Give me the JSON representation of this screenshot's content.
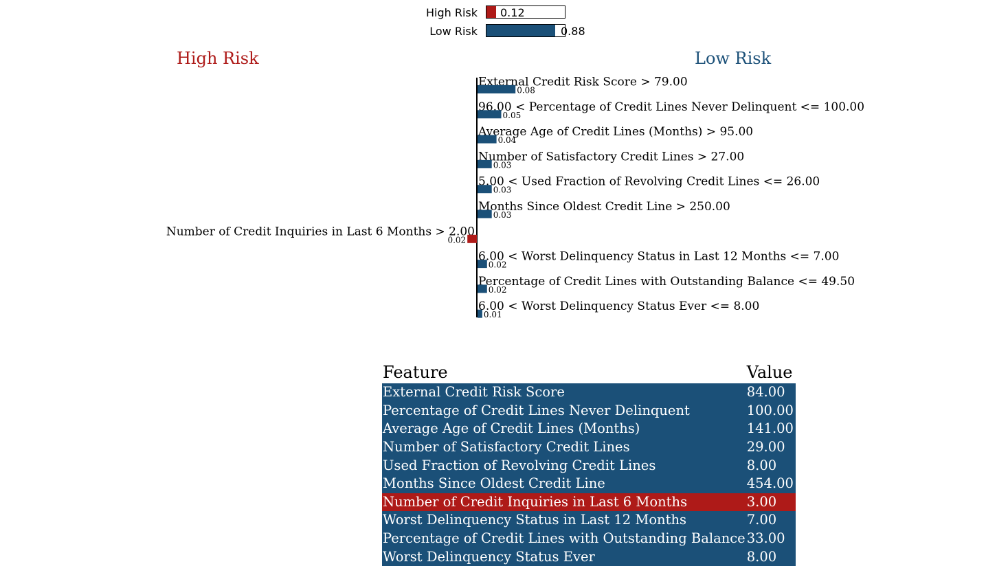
{
  "colors": {
    "high": "#ae1a18",
    "low": "#1b5078"
  },
  "prediction": {
    "high": {
      "label": "High Risk",
      "value": 0.12,
      "value_text": "0.12"
    },
    "low": {
      "label": "Low Risk",
      "value": 0.88,
      "value_text": "0.88"
    }
  },
  "sides": {
    "left_title": "High Risk",
    "right_title": "Low Risk"
  },
  "chart_data": {
    "type": "bar",
    "orientation": "horizontal",
    "series": [
      {
        "label": "External Credit Risk Score > 79.00",
        "value": 0.08,
        "value_text": "0.08",
        "class": "Low Risk"
      },
      {
        "label": "96.00 < Percentage of Credit Lines Never Delinquent <= 100.00",
        "value": 0.05,
        "value_text": "0.05",
        "class": "Low Risk"
      },
      {
        "label": "Average Age of Credit Lines (Months) > 95.00",
        "value": 0.04,
        "value_text": "0.04",
        "class": "Low Risk"
      },
      {
        "label": "Number of Satisfactory Credit Lines > 27.00",
        "value": 0.03,
        "value_text": "0.03",
        "class": "Low Risk"
      },
      {
        "label": "5.00 < Used Fraction of Revolving Credit Lines <= 26.00",
        "value": 0.03,
        "value_text": "0.03",
        "class": "Low Risk"
      },
      {
        "label": "Months Since Oldest Credit Line > 250.00",
        "value": 0.03,
        "value_text": "0.03",
        "class": "Low Risk"
      },
      {
        "label": "Number of Credit Inquiries in Last 6 Months > 2.00",
        "value": 0.02,
        "value_text": "0.02",
        "class": "High Risk"
      },
      {
        "label": "6.00 < Worst Delinquency Status in Last 12 Months <= 7.00",
        "value": 0.02,
        "value_text": "0.02",
        "class": "Low Risk"
      },
      {
        "label": "Percentage of Credit Lines with Outstanding Balance <= 49.50",
        "value": 0.02,
        "value_text": "0.02",
        "class": "Low Risk"
      },
      {
        "label": "6.00 < Worst Delinquency Status Ever <= 8.00",
        "value": 0.01,
        "value_text": "0.01",
        "class": "Low Risk"
      }
    ]
  },
  "table": {
    "headers": [
      "Feature",
      "Value"
    ],
    "rows": [
      {
        "feature": "External Credit Risk Score",
        "value": "84.00",
        "class": "Low Risk"
      },
      {
        "feature": "Percentage of Credit Lines Never Delinquent",
        "value": "100.00",
        "class": "Low Risk"
      },
      {
        "feature": "Average Age of Credit Lines (Months)",
        "value": "141.00",
        "class": "Low Risk"
      },
      {
        "feature": "Number of Satisfactory Credit Lines",
        "value": "29.00",
        "class": "Low Risk"
      },
      {
        "feature": "Used Fraction of Revolving Credit Lines",
        "value": "8.00",
        "class": "Low Risk"
      },
      {
        "feature": "Months Since Oldest Credit Line",
        "value": "454.00",
        "class": "Low Risk"
      },
      {
        "feature": "Number of Credit Inquiries in Last 6 Months",
        "value": "3.00",
        "class": "High Risk"
      },
      {
        "feature": "Worst Delinquency Status in Last 12 Months",
        "value": "7.00",
        "class": "Low Risk"
      },
      {
        "feature": "Percentage of Credit Lines with Outstanding Balance",
        "value": "33.00",
        "class": "Low Risk"
      },
      {
        "feature": "Worst Delinquency Status Ever",
        "value": "8.00",
        "class": "Low Risk"
      }
    ]
  }
}
